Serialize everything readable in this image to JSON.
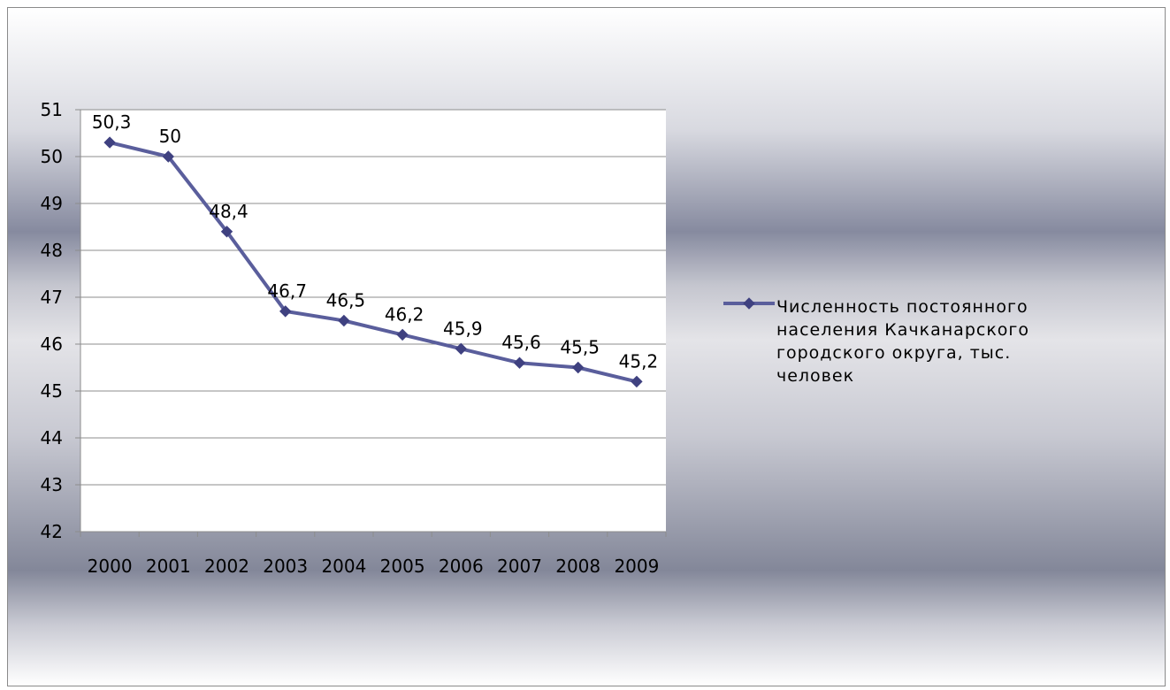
{
  "chart_data": {
    "type": "line",
    "categories": [
      "2000",
      "2001",
      "2002",
      "2003",
      "2004",
      "2005",
      "2006",
      "2007",
      "2008",
      "2009"
    ],
    "series": [
      {
        "name": "Численность постоянного населения Качканарского городского округа, тыс. человек",
        "values": [
          50.3,
          50,
          48.4,
          46.7,
          46.5,
          46.2,
          45.9,
          45.6,
          45.5,
          45.2
        ],
        "data_labels": [
          "50,3",
          "50",
          "48,4",
          "46,7",
          "46,5",
          "46,2",
          "45,9",
          "45,6",
          "45,5",
          "45,2"
        ]
      }
    ],
    "ylim": [
      42,
      51
    ],
    "yticks": [
      "42",
      "43",
      "44",
      "45",
      "46",
      "47",
      "48",
      "49",
      "50",
      "51"
    ],
    "grid": true,
    "legend_position": "right",
    "marker": "diamond",
    "line_color": "#5a5e9c",
    "marker_color": "#3f4180"
  }
}
